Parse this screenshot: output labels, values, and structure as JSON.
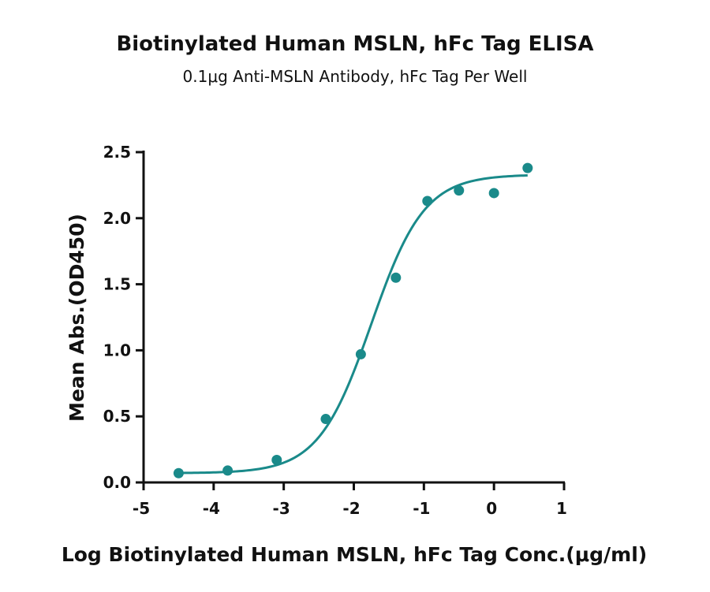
{
  "chart_data": {
    "type": "scatter",
    "title": "Biotinylated Human MSLN, hFc Tag ELISA",
    "subtitle": "0.1μg Anti-MSLN Antibody, hFc Tag Per Well",
    "xlabel": "Log Biotinylated Human MSLN, hFc Tag Conc.(μg/ml)",
    "ylabel": "Mean Abs.(OD450)",
    "xlim": [
      -5,
      1
    ],
    "ylim": [
      0,
      2.5
    ],
    "xticks": [
      "-5",
      "-4",
      "-3",
      "-2",
      "-1",
      "0",
      "1"
    ],
    "yticks": [
      "0.0",
      "0.5",
      "1.0",
      "1.5",
      "2.0",
      "2.5"
    ],
    "grid": false,
    "legend": "none",
    "color": "#1a8a8a",
    "series": [
      {
        "x": [
          -4.5,
          -3.8,
          -3.1,
          -2.4,
          -1.9,
          -1.4,
          -0.95,
          -0.5,
          0.0,
          0.48
        ],
        "y": [
          0.07,
          0.09,
          0.17,
          0.48,
          0.97,
          1.55,
          2.13,
          2.21,
          2.19,
          2.38
        ]
      }
    ],
    "fit": {
      "type": "4PL",
      "bottom": 0.07,
      "top": 2.33,
      "log_ec50": -1.75,
      "hill": 1.15
    }
  }
}
